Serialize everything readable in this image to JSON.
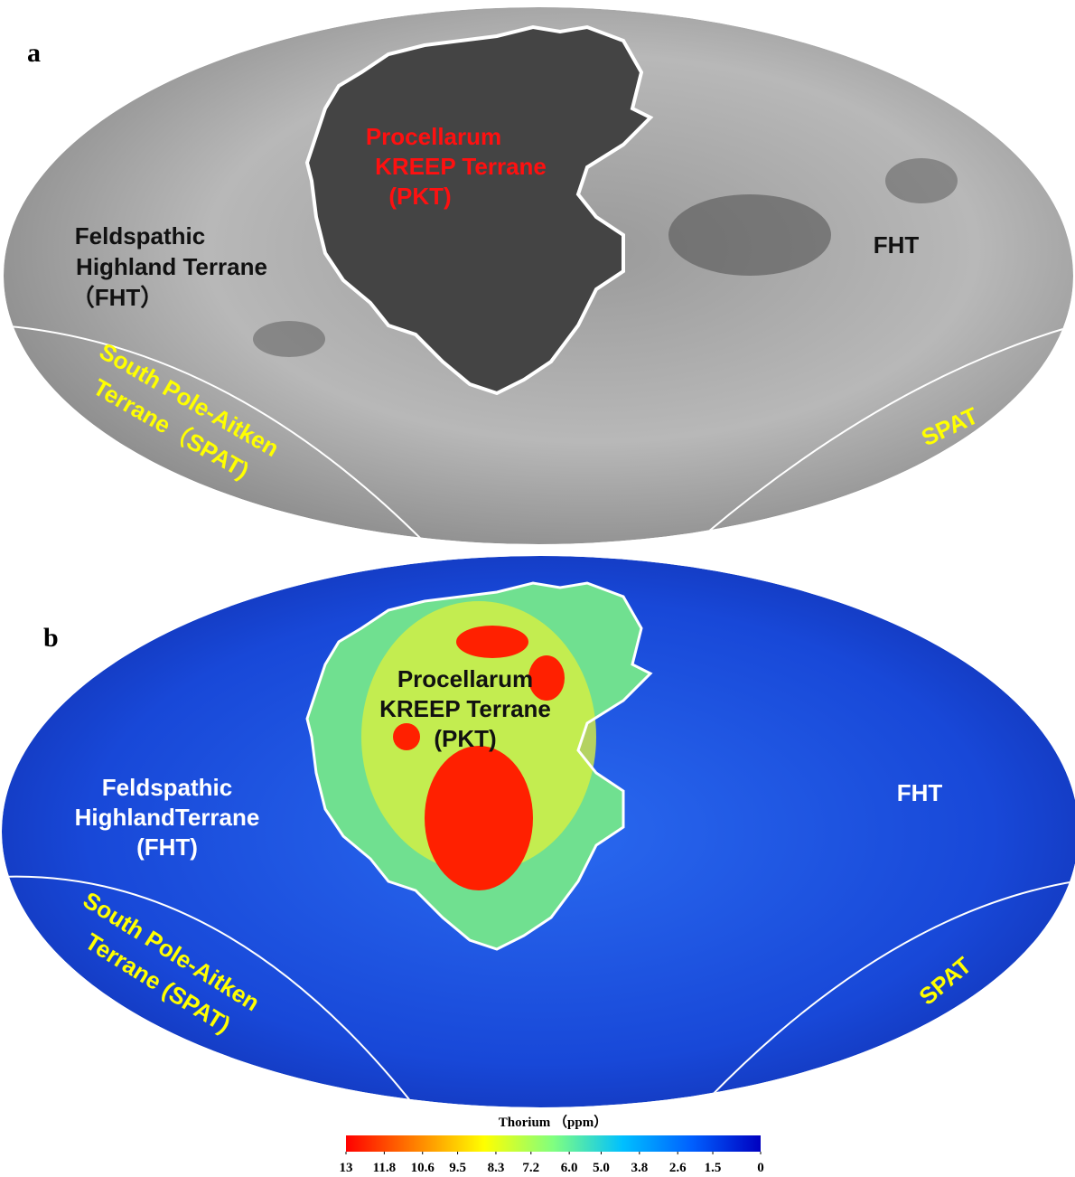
{
  "panel_a": {
    "label": "a",
    "pkt": [
      "Procellarum",
      "KREEP Terrane",
      "(PKT)"
    ],
    "fht_west": [
      "Feldspathic",
      "Highland Terrane",
      "（FHT）"
    ],
    "fht_east": "FHT",
    "spat_west": [
      "South Pole-Aitken",
      "Terrane（SPAT)"
    ],
    "spat_east": "SPAT"
  },
  "panel_b": {
    "label": "b",
    "pkt": [
      "Procellarum",
      "KREEP Terrane",
      "(PKT)"
    ],
    "fht_west": [
      "Feldspathic",
      "HighlandTerrane",
      "(FHT)"
    ],
    "fht_east": "FHT",
    "spat_west": [
      "South Pole-Aitken",
      "Terrane (SPAT)"
    ],
    "spat_east": "SPAT"
  },
  "colorbar": {
    "title": "Thorium （ppm）",
    "lim": [
      13,
      0
    ],
    "colors": [
      "#ff0000",
      "#ff8000",
      "#ffff00",
      "#80ff80",
      "#00c0ff",
      "#0060ff",
      "#0000c0"
    ],
    "ticks": [
      13,
      11.8,
      10.6,
      9.5,
      8.3,
      7.2,
      {
        "value": 6,
        "label": "6.0"
      },
      {
        "value": 5,
        "label": "5.0"
      },
      3.8,
      2.6,
      1.5,
      0
    ]
  }
}
